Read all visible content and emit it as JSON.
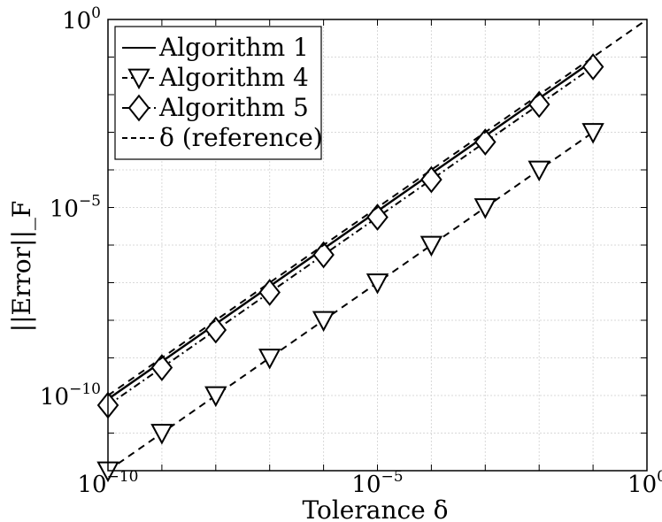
{
  "chart_data": {
    "type": "line",
    "xlabel": "Tolerance δ",
    "ylabel": "||Error||_F",
    "xscale": "log",
    "yscale": "log",
    "xlim": [
      1e-10,
      1
    ],
    "ylim": [
      1e-12,
      1
    ],
    "grid": true,
    "legend_position": "top-left",
    "x_ticks": [
      {
        "base": "10",
        "exp": "−10",
        "value": 1e-10
      },
      {
        "base": "10",
        "exp": "−5",
        "value": 1e-05
      },
      {
        "base": "10",
        "exp": "0",
        "value": 1
      }
    ],
    "y_ticks": [
      {
        "base": "10",
        "exp": "−10",
        "value": 1e-10
      },
      {
        "base": "10",
        "exp": "−5",
        "value": 1e-05
      },
      {
        "base": "10",
        "exp": "0",
        "value": 1
      }
    ],
    "x": [
      1e-10,
      1e-09,
      1e-08,
      1e-07,
      1e-06,
      1e-05,
      0.0001,
      0.001,
      0.01,
      0.1
    ],
    "series": [
      {
        "name": "Algorithm 1",
        "style": "solid",
        "marker": "none",
        "color": "#000000",
        "values": [
          8e-11,
          8e-10,
          8e-09,
          8e-08,
          8e-07,
          8e-06,
          8e-05,
          0.0008,
          0.008,
          0.08
        ]
      },
      {
        "name": "Algorithm 4",
        "style": "dashed",
        "marker": "triangle-down",
        "color": "#000000",
        "values": [
          1e-12,
          1e-11,
          1e-10,
          1e-09,
          1e-08,
          1e-07,
          1e-06,
          1e-05,
          0.0001,
          0.001
        ]
      },
      {
        "name": "Algorithm 5",
        "style": "dashdot",
        "marker": "diamond",
        "color": "#000000",
        "values": [
          5.5e-11,
          5.5e-10,
          5.5e-09,
          5.5e-08,
          5.5e-07,
          5.5e-06,
          5.5e-05,
          0.00055,
          0.0055,
          0.055
        ]
      },
      {
        "name": "δ (reference)",
        "style": "dashed",
        "marker": "none",
        "color": "#000000",
        "x": [
          1e-10,
          1
        ],
        "values": [
          1e-10,
          1
        ]
      }
    ]
  }
}
